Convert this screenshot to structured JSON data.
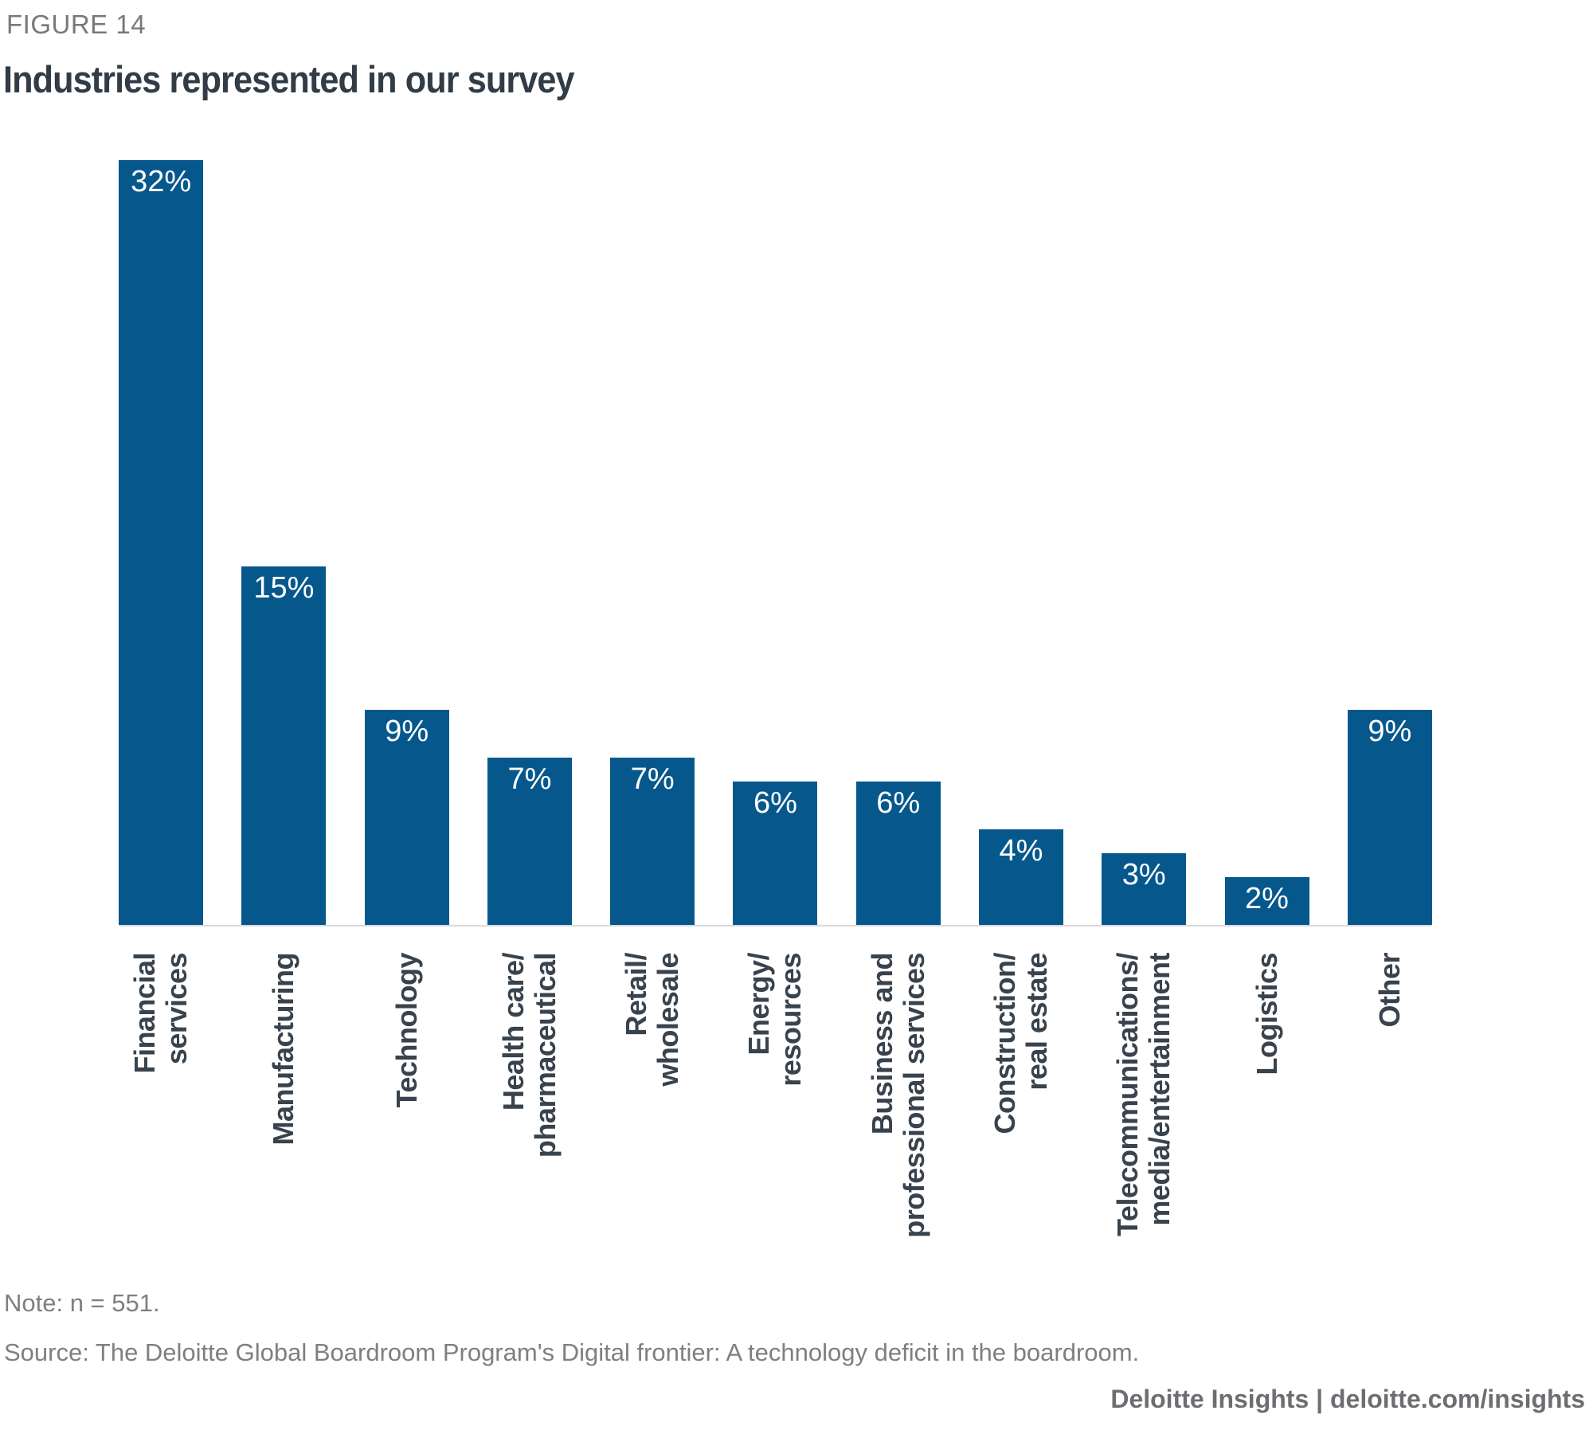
{
  "figure_label": "FIGURE 14",
  "title": "Industries represented in our survey",
  "note": "Note: n = 551.",
  "source": "Source: The Deloitte Global Boardroom Program's Digital frontier: A technology deficit in the boardroom.",
  "footer": "Deloitte Insights | deloitte.com/insights",
  "chart_data": {
    "type": "bar",
    "title": "Industries represented in our survey",
    "unit": "%",
    "bar_color": "#06588C",
    "axis_line_color": "#D9DADB",
    "value_label_color": "#ffffff",
    "categories": [
      "Financial services",
      "Manufacturing",
      "Technology",
      "Health care/pharmaceutical",
      "Retail/wholesale",
      "Energy/resources",
      "Business and professional services",
      "Construction/real estate",
      "Telecommunications/media/entertainment",
      "Logistics",
      "Other"
    ],
    "category_label_lines": [
      [
        "Financial",
        "services"
      ],
      [
        "Manufacturing"
      ],
      [
        "Technology"
      ],
      [
        "Health care/",
        "pharmaceutical"
      ],
      [
        "Retail/",
        "wholesale"
      ],
      [
        "Energy/",
        "resources"
      ],
      [
        "Business and",
        "professional services"
      ],
      [
        "Construction/",
        "real estate"
      ],
      [
        "Telecommunications/",
        "media/entertainment"
      ],
      [
        "Logistics"
      ],
      [
        "Other"
      ]
    ],
    "values": [
      32,
      15,
      9,
      7,
      7,
      6,
      6,
      4,
      3,
      2,
      9
    ],
    "value_labels": [
      "32%",
      "15%",
      "9%",
      "7%",
      "7%",
      "6%",
      "6%",
      "4%",
      "3%",
      "2%",
      "9%"
    ],
    "ylim": [
      0,
      32
    ],
    "xlabel": "",
    "ylabel": "",
    "grid": false,
    "legend": false,
    "x_label_rotation_degrees": 90
  }
}
